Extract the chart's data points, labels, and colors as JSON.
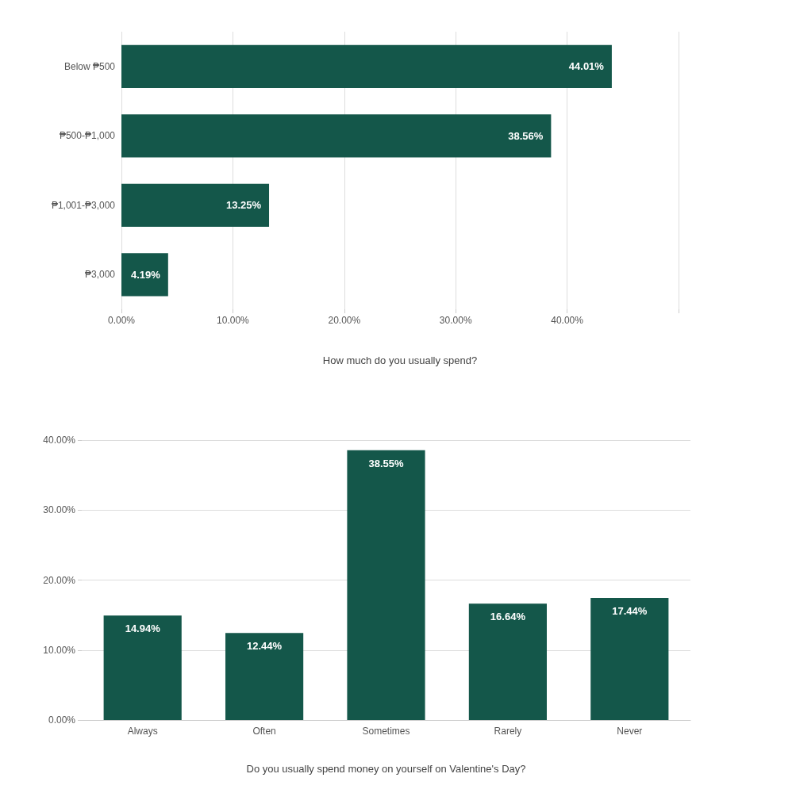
{
  "chart_data": [
    {
      "type": "bar",
      "orientation": "horizontal",
      "xlabel": "How much do you usually spend?",
      "categories": [
        "Below ₱500",
        "₱500-₱1,000",
        "₱1,001-₱3,000",
        "₱3,000"
      ],
      "values": [
        44.01,
        38.56,
        13.25,
        4.19
      ],
      "color": "#14574a",
      "value_labels": [
        "44.01%",
        "38.56%",
        "13.25%",
        "4.19%"
      ],
      "xlim": [
        0,
        50
      ],
      "xticks": [
        {
          "value": 0,
          "label": "0.00%"
        },
        {
          "value": 10,
          "label": "10.00%"
        },
        {
          "value": 20,
          "label": "20.00%"
        },
        {
          "value": 30,
          "label": "30.00%"
        },
        {
          "value": 40,
          "label": "40.00%"
        },
        {
          "value": 50,
          "label": null
        }
      ],
      "grid": "x"
    },
    {
      "type": "bar",
      "xlabel": "Do you usually spend money on yourself on Valentine's Day?",
      "categories": [
        "Always",
        "Often",
        "Sometimes",
        "Rarely",
        "Never"
      ],
      "values": [
        14.94,
        12.44,
        38.55,
        16.64,
        17.44
      ],
      "color": "#14574a",
      "value_labels": [
        "14.94%",
        "12.44%",
        "38.55%",
        "16.64%",
        "17.44%"
      ],
      "ylim": [
        0,
        40
      ],
      "yticks": [
        {
          "value": 0,
          "label": "0.00%"
        },
        {
          "value": 10,
          "label": "10.00%"
        },
        {
          "value": 20,
          "label": "20.00%"
        },
        {
          "value": 30,
          "label": "30.00%"
        },
        {
          "value": 40,
          "label": "40.00%"
        }
      ],
      "grid": "y"
    }
  ]
}
